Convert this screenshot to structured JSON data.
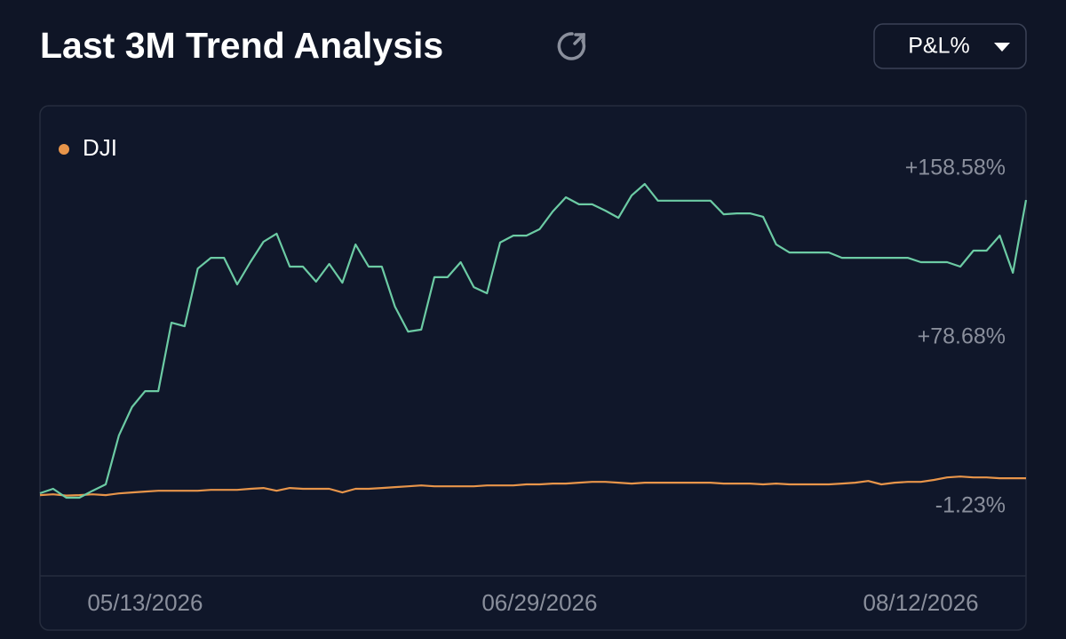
{
  "chart_data": {
    "type": "line",
    "title": "Last 3M Trend Analysis",
    "selector": "P&L%",
    "categories": [
      null,
      null,
      null,
      null,
      null,
      null,
      null,
      null,
      "05/13/2026",
      null,
      null,
      null,
      null,
      null,
      null,
      null,
      null,
      null,
      null,
      null,
      null,
      null,
      null,
      null,
      null,
      null,
      null,
      null,
      null,
      null,
      null,
      null,
      null,
      null,
      null,
      null,
      null,
      null,
      "06/29/2026",
      null,
      null,
      null,
      null,
      null,
      null,
      null,
      null,
      null,
      null,
      null,
      null,
      null,
      null,
      null,
      null,
      null,
      null,
      null,
      null,
      null,
      null,
      null,
      null,
      null,
      null,
      null,
      null,
      "08/12/2026",
      null,
      null,
      null,
      null,
      null,
      null,
      null,
      null
    ],
    "series": [
      {
        "name": null,
        "color": "#6ccba4",
        "values": [
          5.1,
          7.2,
          3.0,
          3.0,
          6.3,
          9.3,
          32.4,
          45.9,
          53.4,
          53.4,
          85.8,
          84.1,
          111.4,
          116.5,
          116.5,
          103.9,
          114.4,
          124.1,
          127.9,
          112.3,
          112.3,
          105.2,
          113.6,
          104.7,
          122.8,
          112.3,
          112.3,
          93.4,
          81.6,
          82.5,
          107.3,
          107.3,
          114.4,
          102.6,
          99.7,
          123.7,
          127.0,
          127.0,
          130.0,
          138.4,
          145.1,
          141.8,
          141.8,
          138.8,
          135.4,
          146.0,
          151.4,
          143.5,
          143.5,
          143.5,
          143.5,
          143.5,
          137.1,
          137.5,
          137.5,
          135.9,
          122.8,
          119.0,
          119.0,
          119.0,
          119.0,
          116.5,
          116.5,
          116.5,
          116.5,
          116.5,
          116.5,
          114.4,
          114.4,
          114.4,
          112.3,
          119.9,
          119.9,
          127.0,
          109.4,
          143.8
        ]
      },
      {
        "name": "DJI",
        "color": "#e8954a",
        "values": [
          4.2,
          4.6,
          4.0,
          4.2,
          4.6,
          4.2,
          5.0,
          5.5,
          5.9,
          6.3,
          6.3,
          6.3,
          6.3,
          6.7,
          6.7,
          6.7,
          7.2,
          7.6,
          6.3,
          7.6,
          7.2,
          7.2,
          7.2,
          5.5,
          7.2,
          7.2,
          7.6,
          8.0,
          8.4,
          8.8,
          8.4,
          8.4,
          8.4,
          8.4,
          8.8,
          8.8,
          8.8,
          9.3,
          9.3,
          9.7,
          9.7,
          10.1,
          10.5,
          10.5,
          10.1,
          9.7,
          10.1,
          10.1,
          10.1,
          10.1,
          10.1,
          10.1,
          9.7,
          9.7,
          9.7,
          9.3,
          9.7,
          9.3,
          9.3,
          9.3,
          9.3,
          9.7,
          10.1,
          10.9,
          9.3,
          10.1,
          10.5,
          10.5,
          11.4,
          12.6,
          13.0,
          12.6,
          12.6,
          12.2,
          12.2,
          12.2
        ]
      }
    ],
    "ylim": [
      -34,
      188
    ],
    "yticks": [
      {
        "value": 158.58,
        "label": "+158.58%"
      },
      {
        "value": 78.68,
        "label": "+78.68%"
      },
      {
        "value": -1.23,
        "label": "-1.23%"
      }
    ],
    "grid": false,
    "legend": "top-left"
  }
}
